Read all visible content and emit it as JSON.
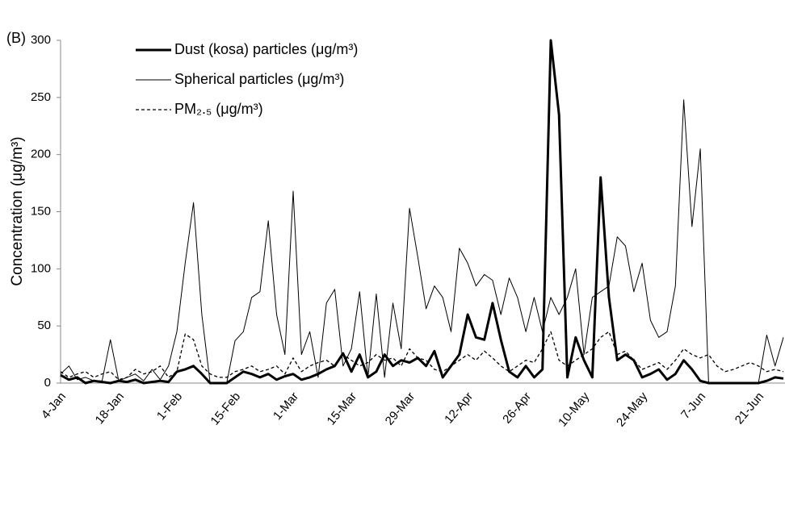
{
  "chart_data": {
    "type": "line",
    "panel_label": "(B)",
    "y_label": "Concentration (μg/m³)",
    "categories": [
      "4-Jan",
      null,
      null,
      null,
      null,
      null,
      null,
      "18-Jan",
      null,
      null,
      null,
      null,
      null,
      null,
      "1-Feb",
      null,
      null,
      null,
      null,
      null,
      null,
      "15-Feb",
      null,
      null,
      null,
      null,
      null,
      null,
      "1-Mar",
      null,
      null,
      null,
      null,
      null,
      null,
      "15-Mar",
      null,
      null,
      null,
      null,
      null,
      null,
      "29-Mar",
      null,
      null,
      null,
      null,
      null,
      null,
      "12-Apr",
      null,
      null,
      null,
      null,
      null,
      null,
      "26-Apr",
      null,
      null,
      null,
      null,
      null,
      null,
      "10-May",
      null,
      null,
      null,
      null,
      null,
      null,
      "24-May",
      null,
      null,
      null,
      null,
      null,
      null,
      "7-Jun",
      null,
      null,
      null,
      null,
      null,
      null,
      "21-Jun",
      null,
      null,
      null
    ],
    "series": [
      {
        "name": "Dust (kosa) particles (μg/m³)",
        "color": "#000000",
        "line_width": 3,
        "line_style": "solid",
        "values": [
          7,
          3,
          5,
          0,
          2,
          1,
          0,
          2,
          1,
          3,
          0,
          1,
          2,
          1,
          10,
          12,
          15,
          8,
          0,
          0,
          0,
          5,
          10,
          8,
          5,
          8,
          3,
          6,
          8,
          3,
          5,
          8,
          12,
          15,
          26,
          10,
          25,
          5,
          10,
          25,
          15,
          20,
          18,
          22,
          15,
          28,
          5,
          15,
          25,
          60,
          40,
          38,
          70,
          38,
          10,
          5,
          15,
          5,
          12,
          300,
          235,
          5,
          40,
          20,
          5,
          180,
          75,
          20,
          25,
          20,
          5,
          8,
          12,
          3,
          8,
          20,
          12,
          2,
          0,
          0,
          0,
          0,
          0,
          0,
          0,
          2,
          5,
          4
        ]
      },
      {
        "name": "Spherical particles (μg/m³)",
        "color": "#000000",
        "line_width": 1,
        "line_style": "solid",
        "values": [
          8,
          15,
          3,
          5,
          2,
          2,
          38,
          2,
          5,
          8,
          2,
          12,
          3,
          15,
          45,
          105,
          158,
          60,
          0,
          0,
          0,
          37,
          45,
          75,
          80,
          142,
          60,
          25,
          168,
          25,
          45,
          5,
          70,
          82,
          15,
          30,
          80,
          5,
          78,
          5,
          70,
          30,
          153,
          110,
          65,
          85,
          75,
          45,
          118,
          105,
          85,
          95,
          90,
          60,
          92,
          75,
          45,
          75,
          45,
          75,
          60,
          75,
          100,
          25,
          75,
          80,
          85,
          128,
          120,
          80,
          105,
          55,
          40,
          45,
          85,
          248,
          137,
          205,
          0,
          0,
          0,
          0,
          0,
          0,
          0,
          42,
          15,
          40
        ]
      },
      {
        "name": "PM₂.₅ (μg/m³)",
        "color": "#000000",
        "line_width": 1.3,
        "line_style": "dashed",
        "values": [
          10,
          5,
          8,
          10,
          5,
          8,
          10,
          3,
          5,
          12,
          8,
          10,
          15,
          5,
          10,
          43,
          38,
          15,
          8,
          5,
          5,
          10,
          12,
          15,
          10,
          12,
          15,
          8,
          22,
          10,
          15,
          18,
          20,
          15,
          25,
          20,
          15,
          18,
          25,
          20,
          22,
          15,
          30,
          22,
          20,
          12,
          10,
          15,
          20,
          25,
          20,
          28,
          22,
          15,
          10,
          15,
          20,
          18,
          30,
          45,
          20,
          15,
          20,
          25,
          30,
          40,
          45,
          25,
          28,
          20,
          12,
          15,
          18,
          12,
          20,
          30,
          25,
          22,
          25,
          15,
          10,
          12,
          15,
          18,
          15,
          10,
          12,
          10
        ]
      }
    ],
    "ylim": [
      0,
      300
    ],
    "yticks": [
      0,
      50,
      100,
      150,
      200,
      250,
      300
    ],
    "grid": false,
    "legend": "top-left"
  }
}
